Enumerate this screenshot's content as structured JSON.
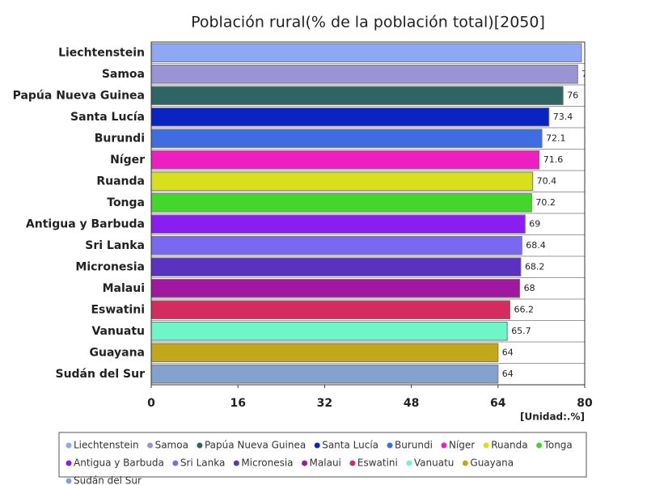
{
  "chart_data": {
    "type": "barh",
    "title": "Población rural(% de la población total)[2050]",
    "categories": [
      "Liechtenstein",
      "Samoa",
      "Papúa Nueva Guinea",
      "Santa Lucía",
      "Burundi",
      "Níger",
      "Ruanda",
      "Tonga",
      "Antigua y Barbuda",
      "Sri Lanka",
      "Micronesia",
      "Malaui",
      "Eswatini",
      "Vanuatu",
      "Guayana",
      "Sudán del Sur"
    ],
    "values": [
      79.4,
      78.7,
      76,
      73.4,
      72.1,
      71.6,
      70.4,
      70.2,
      69,
      68.4,
      68.2,
      68,
      66.2,
      65.7,
      64,
      64
    ],
    "colors": [
      "#8fa8f5",
      "#9a94d4",
      "#2e6464",
      "#0a24c4",
      "#3f6de0",
      "#ee1fc0",
      "#d8e01e",
      "#44d62c",
      "#8a1ef0",
      "#7b68f0",
      "#5a32c0",
      "#a0189e",
      "#d42c60",
      "#6ef5c8",
      "#c0a81a",
      "#85a2cc"
    ],
    "xlim": [
      0,
      80
    ],
    "xticks": [
      0,
      16,
      32,
      48,
      64,
      80
    ],
    "unit_label": "[Unidad:.%]",
    "legend": "bottom"
  }
}
